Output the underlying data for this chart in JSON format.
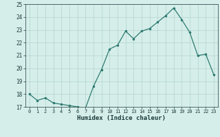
{
  "x": [
    0,
    1,
    2,
    3,
    4,
    5,
    6,
    7,
    8,
    9,
    10,
    11,
    12,
    13,
    14,
    15,
    16,
    17,
    18,
    19,
    20,
    21,
    22,
    23
  ],
  "y": [
    18.0,
    17.5,
    17.7,
    17.3,
    17.2,
    17.1,
    17.0,
    16.9,
    18.6,
    19.9,
    21.5,
    21.8,
    22.9,
    22.3,
    22.9,
    23.1,
    23.6,
    24.1,
    24.7,
    23.8,
    22.8,
    21.0,
    21.1,
    19.5
  ],
  "xlabel": "Humidex (Indice chaleur)",
  "ylim": [
    17,
    25
  ],
  "xlim": [
    -0.5,
    23.5
  ],
  "yticks": [
    17,
    18,
    19,
    20,
    21,
    22,
    23,
    24,
    25
  ],
  "xticks": [
    0,
    1,
    2,
    3,
    4,
    5,
    6,
    7,
    8,
    9,
    10,
    11,
    12,
    13,
    14,
    15,
    16,
    17,
    18,
    19,
    20,
    21,
    22,
    23
  ],
  "line_color": "#2d7a70",
  "marker_color": "#2d7a70",
  "bg_color": "#d6eeea",
  "grid_color": "#b0d4cc",
  "tick_label_color": "#1a3a3a",
  "xlabel_color": "#1a3a3a"
}
